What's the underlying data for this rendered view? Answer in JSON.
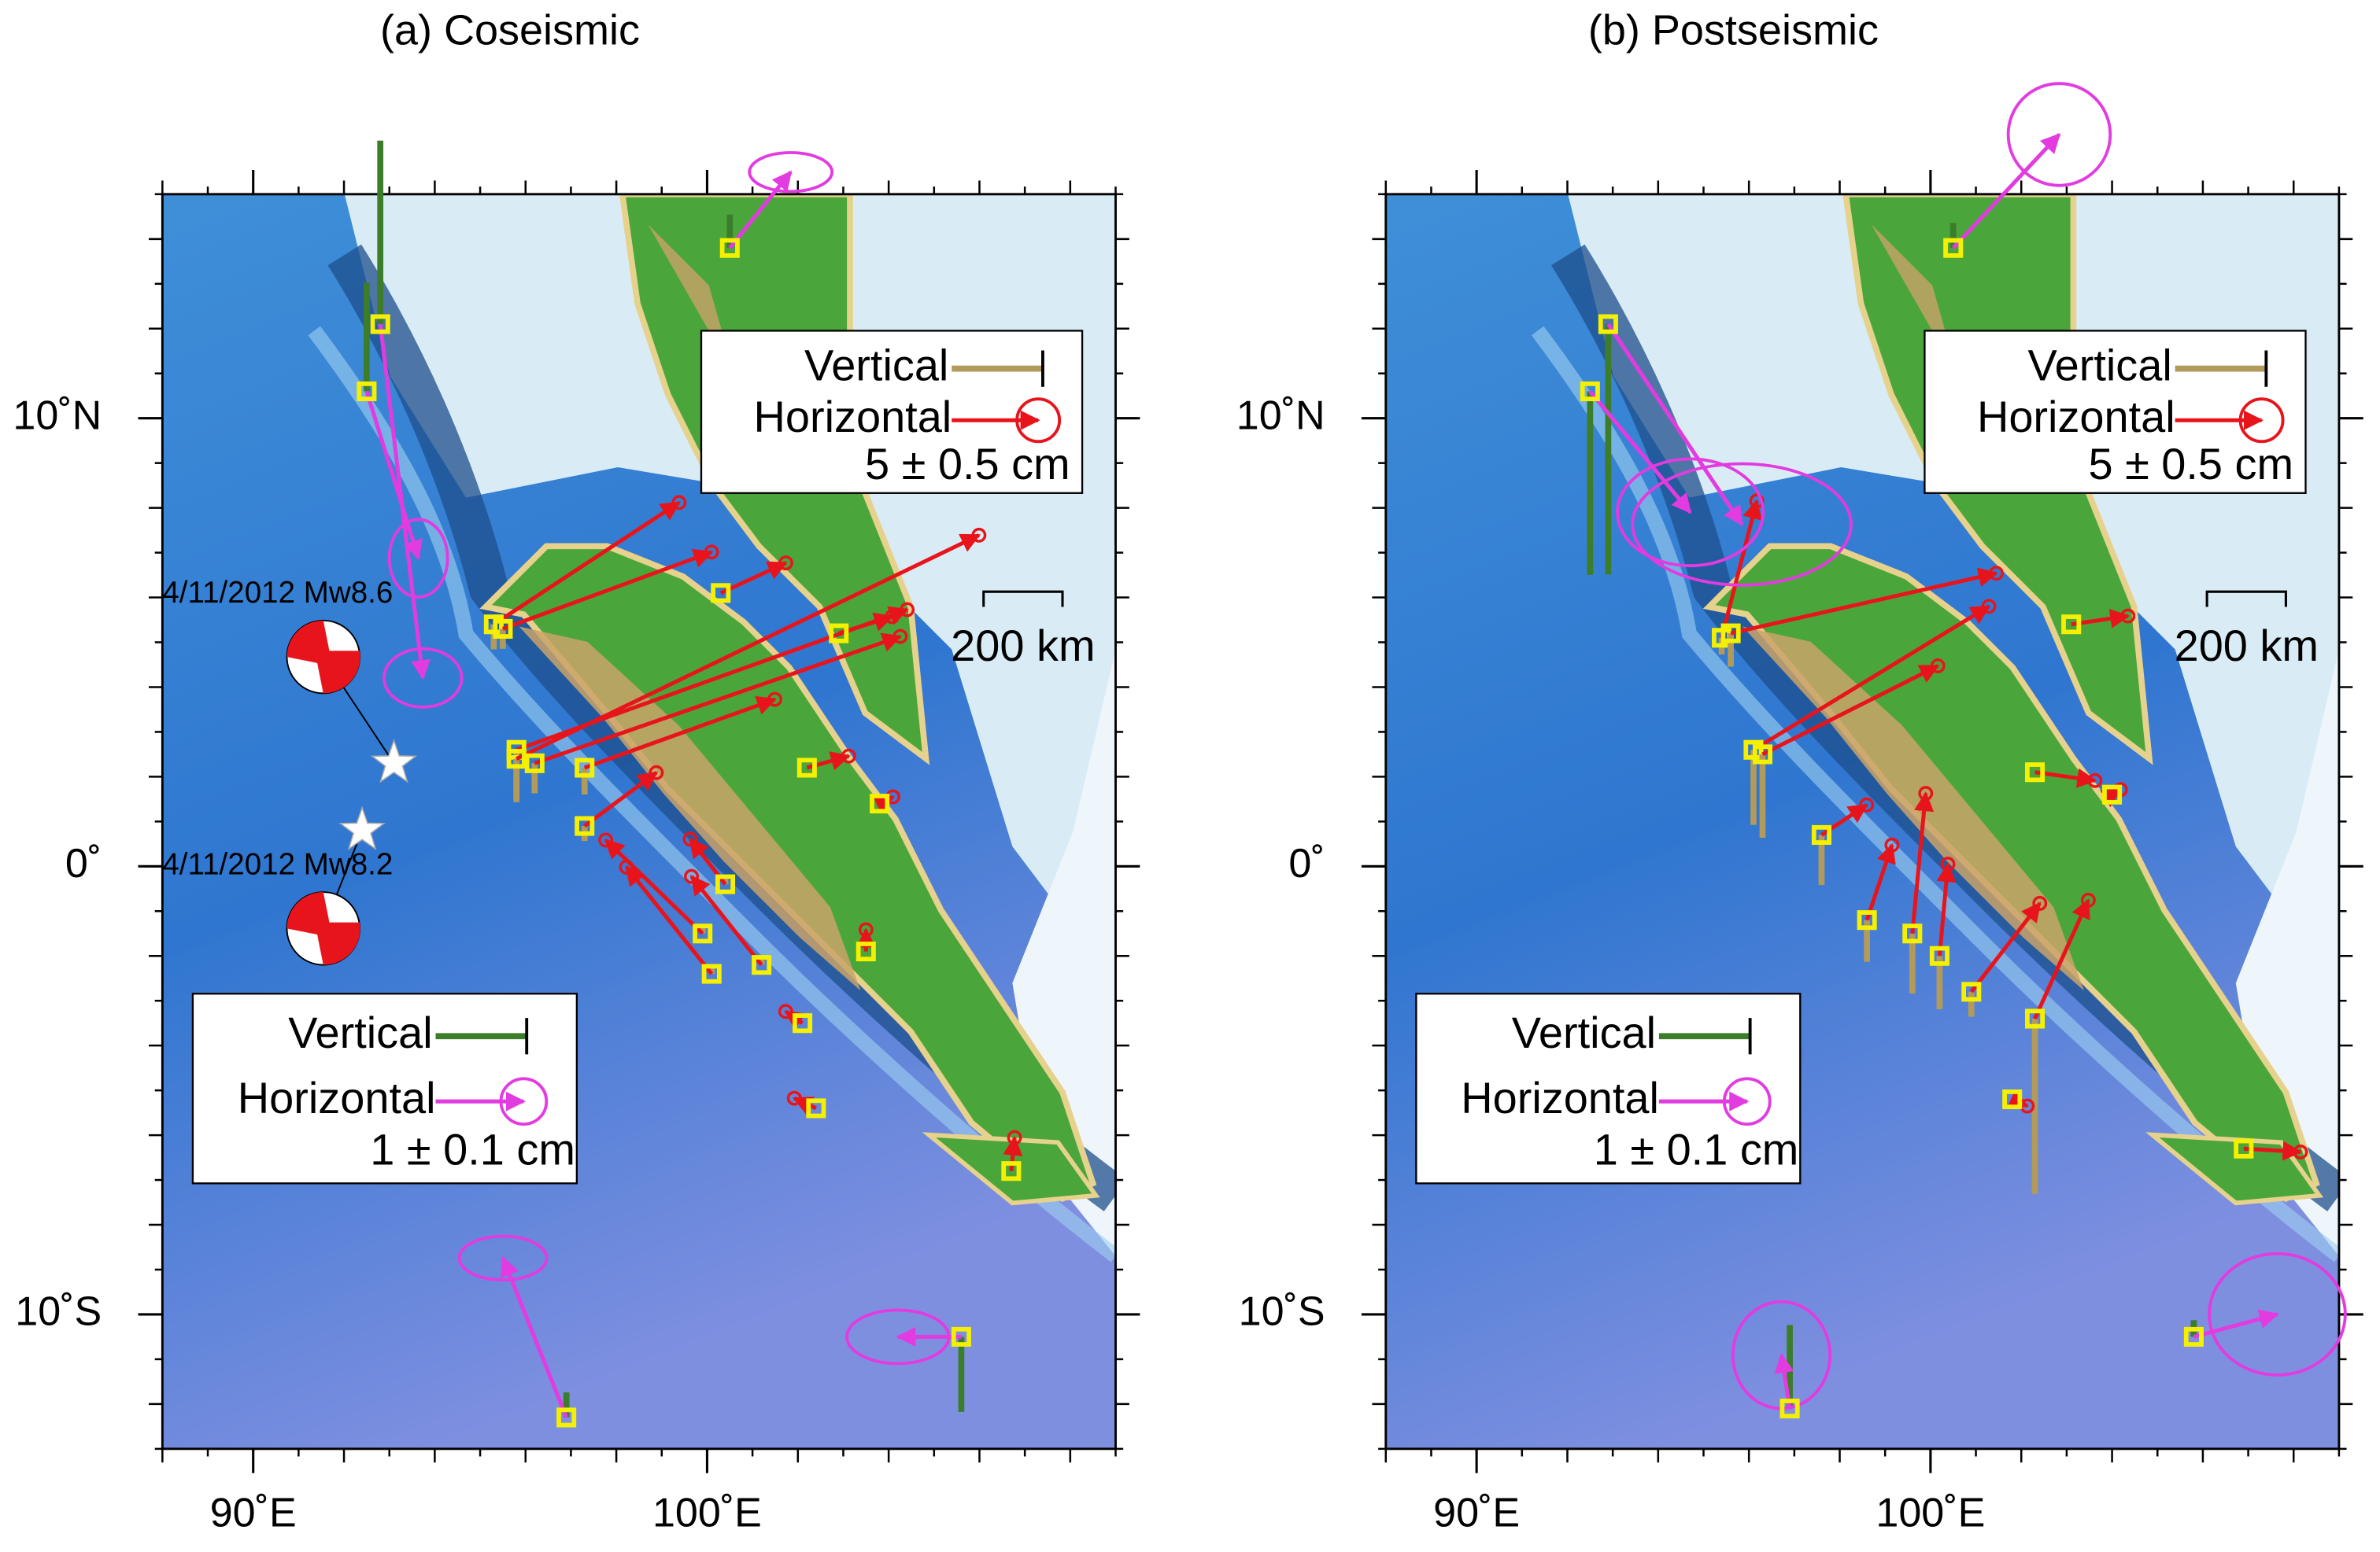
{
  "panels": [
    {
      "title": "(a) Coseismic",
      "xlim": [
        88,
        109
      ],
      "ylim": [
        -13,
        15
      ],
      "xticks": [
        {
          "value": 90,
          "label": "90˚E"
        },
        {
          "value": 100,
          "label": "100˚E"
        }
      ],
      "yticks": [
        {
          "value": 10,
          "label": "10˚N"
        },
        {
          "value": 0,
          "label": "0˚"
        },
        {
          "value": -10,
          "label": "10˚S"
        }
      ],
      "legend_near": {
        "vertical": "Vertical",
        "horizontal": "Horizontal",
        "scale": "5 ± 0.5 cm"
      },
      "legend_far": {
        "vertical": "Vertical",
        "horizontal": "Horizontal",
        "scale": "1 ± 0.1 cm"
      },
      "scale_bar": "200 km",
      "events": [
        {
          "label": "4/11/2012 Mw8.6",
          "lon": 93.1,
          "lat": 2.3
        },
        {
          "label": "4/11/2012 Mw8.2",
          "lon": 92.4,
          "lat": 0.8
        }
      ],
      "stations": [
        {
          "group": "near",
          "lon": 95.3,
          "lat": 5.4,
          "east": 11.1,
          "north": 7.3,
          "up": -1.5
        },
        {
          "group": "near",
          "lon": 95.5,
          "lat": 5.3,
          "east": 12.5,
          "north": 4.6,
          "up": -1.2
        },
        {
          "group": "near",
          "lon": 95.8,
          "lat": 2.6,
          "east": 23.4,
          "north": 8.4,
          "up": -3.0
        },
        {
          "group": "near",
          "lon": 95.8,
          "lat": 2.4,
          "east": 27.7,
          "north": 13.4,
          "up": -2.6
        },
        {
          "group": "near",
          "lon": 96.2,
          "lat": 2.3,
          "east": 21.9,
          "north": 7.6,
          "up": -1.8
        },
        {
          "group": "near",
          "lon": 97.3,
          "lat": 2.2,
          "east": 11.4,
          "north": 4.1,
          "up": -1.6
        },
        {
          "group": "near",
          "lon": 97.3,
          "lat": 0.9,
          "east": 4.3,
          "north": 3.2,
          "up": -0.9
        },
        {
          "group": "near",
          "lon": 100.3,
          "lat": 6.1,
          "east": 3.9,
          "north": 1.8,
          "up": 0
        },
        {
          "group": "near",
          "lon": 102.9,
          "lat": 5.2,
          "east": 3.2,
          "north": 1.0,
          "up": 0
        },
        {
          "group": "near",
          "lon": 102.2,
          "lat": 2.2,
          "east": 2.5,
          "north": 0.7,
          "up": 0
        },
        {
          "group": "near",
          "lon": 103.8,
          "lat": 1.4,
          "east": 0.8,
          "north": 0.4,
          "up": 0
        },
        {
          "group": "near",
          "lon": 99.9,
          "lat": -1.5,
          "east": -5.8,
          "north": 5.6,
          "up": 0.5
        },
        {
          "group": "near",
          "lon": 100.1,
          "lat": -2.4,
          "east": -5.1,
          "north": 6.4,
          "up": 0.4
        },
        {
          "group": "near",
          "lon": 101.2,
          "lat": -2.2,
          "east": -4.2,
          "north": 5.3,
          "up": 0.6
        },
        {
          "group": "near",
          "lon": 100.4,
          "lat": -0.4,
          "east": -2.1,
          "north": 2.7,
          "up": 0.3
        },
        {
          "group": "near",
          "lon": 102.1,
          "lat": -3.5,
          "east": -1.0,
          "north": 0.7,
          "up": 0
        },
        {
          "group": "near",
          "lon": 102.4,
          "lat": -5.4,
          "east": -1.3,
          "north": 0.6,
          "up": 0
        },
        {
          "group": "near",
          "lon": 103.5,
          "lat": -1.9,
          "east": 0,
          "north": 1.3,
          "up": 0
        },
        {
          "group": "near",
          "lon": 106.7,
          "lat": -6.8,
          "east": 0.2,
          "north": 2.0,
          "up": 0
        },
        {
          "group": "far",
          "lon": 92.8,
          "lat": 12.1,
          "east": 0.51,
          "north": -4.24,
          "up": 2.2,
          "sigma": [
            0.16,
            0.12
          ]
        },
        {
          "group": "far",
          "lon": 92.5,
          "lat": 10.6,
          "east": 0.62,
          "north": -2.0,
          "up": 1.3,
          "sigma": [
            0.12,
            0.16
          ]
        },
        {
          "group": "far",
          "lon": 100.5,
          "lat": 13.8,
          "east": 0.73,
          "north": 0.91,
          "up": 0.4,
          "sigma": [
            0.17,
            0.08
          ]
        },
        {
          "group": "far",
          "lon": 96.9,
          "lat": -12.3,
          "east": -0.76,
          "north": 1.91,
          "up": 0.3,
          "sigma": [
            0.18,
            0.09
          ]
        },
        {
          "group": "far",
          "lon": 105.6,
          "lat": -10.5,
          "east": -0.76,
          "north": 0,
          "up": -0.9,
          "sigma": [
            0.21,
            0.11
          ]
        }
      ]
    },
    {
      "title": "(b) Postseismic",
      "xlim": [
        88,
        109
      ],
      "ylim": [
        -13,
        15
      ],
      "xticks": [
        {
          "value": 90,
          "label": "90˚E"
        },
        {
          "value": 100,
          "label": "100˚E"
        }
      ],
      "yticks": [
        {
          "value": 10,
          "label": "10˚N"
        },
        {
          "value": 0,
          "label": "0˚"
        },
        {
          "value": -10,
          "label": "10˚S"
        }
      ],
      "legend_near": {
        "vertical": "Vertical",
        "horizontal": "Horizontal",
        "scale": "5 ± 0.5 cm"
      },
      "legend_far": {
        "vertical": "Vertical",
        "horizontal": "Horizontal",
        "scale": "1 ± 0.1 cm"
      },
      "scale_bar": "200 km",
      "events": [],
      "stations": [
        {
          "group": "near",
          "lon": 95.4,
          "lat": 5.1,
          "east": 2.1,
          "north": 8.2,
          "up": -1.0
        },
        {
          "group": "near",
          "lon": 95.6,
          "lat": 5.2,
          "east": 15.9,
          "north": 3.6,
          "up": -2.0
        },
        {
          "group": "near",
          "lon": 96.1,
          "lat": 2.6,
          "east": 14.1,
          "north": 8.6,
          "up": -4.5
        },
        {
          "group": "near",
          "lon": 96.3,
          "lat": 2.5,
          "east": 10.5,
          "north": 5.3,
          "up": -5.0
        },
        {
          "group": "near",
          "lon": 97.6,
          "lat": 0.7,
          "east": 2.7,
          "north": 1.8,
          "up": -3.0
        },
        {
          "group": "near",
          "lon": 98.6,
          "lat": -1.2,
          "east": 1.5,
          "north": 4.5,
          "up": -2.5
        },
        {
          "group": "near",
          "lon": 99.6,
          "lat": -1.5,
          "east": 0.8,
          "north": 8.4,
          "up": -3.6
        },
        {
          "group": "near",
          "lon": 100.2,
          "lat": -2.0,
          "east": 0.5,
          "north": 5.5,
          "up": -3.2
        },
        {
          "group": "near",
          "lon": 100.9,
          "lat": -2.8,
          "east": 4.1,
          "north": 5.3,
          "up": -1.5
        },
        {
          "group": "near",
          "lon": 102.3,
          "lat": -3.4,
          "east": 3.2,
          "north": 7.1,
          "up": -10.5
        },
        {
          "group": "near",
          "lon": 103.1,
          "lat": 5.4,
          "east": 3.4,
          "north": 0.5,
          "up": 0
        },
        {
          "group": "near",
          "lon": 102.3,
          "lat": 2.1,
          "east": 3.6,
          "north": -0.5,
          "up": 0
        },
        {
          "group": "near",
          "lon": 104.0,
          "lat": 1.6,
          "east": 0.5,
          "north": 0.3,
          "up": 0
        },
        {
          "group": "near",
          "lon": 101.8,
          "lat": -5.2,
          "east": 0.9,
          "north": -0.4,
          "up": 0
        },
        {
          "group": "near",
          "lon": 106.9,
          "lat": -6.3,
          "east": 3.4,
          "north": -0.2,
          "up": 0
        },
        {
          "group": "far",
          "lon": 92.9,
          "lat": 12.1,
          "east": 1.6,
          "north": -2.4,
          "up": -3.0,
          "sigma": [
            0.45,
            0.25
          ]
        },
        {
          "group": "far",
          "lon": 92.5,
          "lat": 10.6,
          "east": 1.2,
          "north": -1.45,
          "up": -2.2,
          "sigma": [
            0.3,
            0.22
          ]
        },
        {
          "group": "far",
          "lon": 100.5,
          "lat": 13.8,
          "east": 1.27,
          "north": 1.36,
          "up": 0.3,
          "sigma": [
            0.21,
            0.21
          ]
        },
        {
          "group": "far",
          "lon": 96.9,
          "lat": -12.1,
          "east": -0.1,
          "north": 0.64,
          "up": 1.0,
          "sigma": [
            0.2,
            0.22
          ]
        },
        {
          "group": "far",
          "lon": 105.8,
          "lat": -10.5,
          "east": 1.0,
          "north": 0.27,
          "up": 0.2,
          "sigma": [
            0.28,
            0.25
          ]
        }
      ]
    }
  ],
  "colors": {
    "near_horizontal": "#e8141b",
    "near_vertical": "#b29a5a",
    "far_horizontal": "#e23be0",
    "far_vertical": "#3c7d2a",
    "station": "#f4f000"
  }
}
